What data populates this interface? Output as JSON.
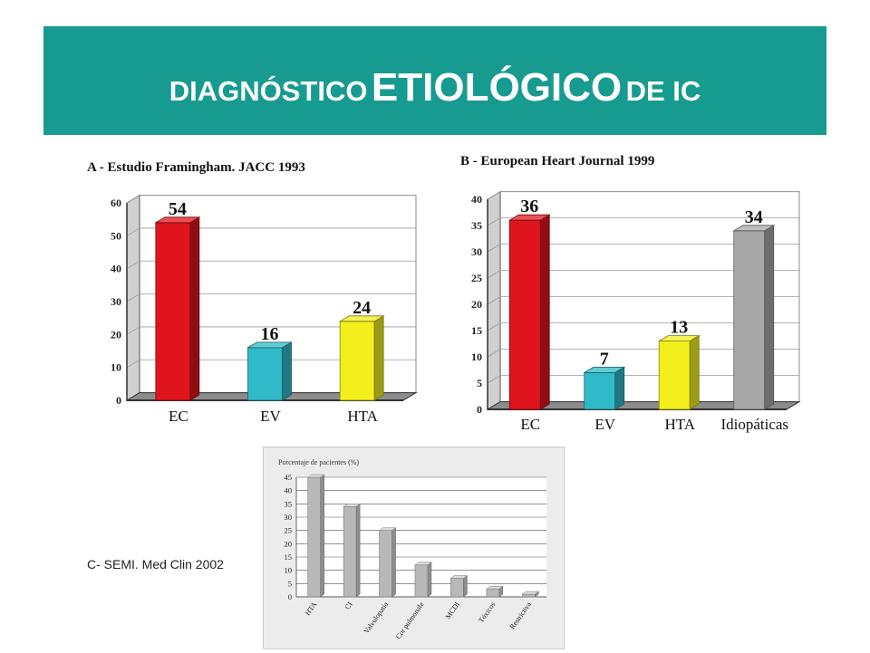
{
  "slide": {
    "title_part1": "DIAGNÓSTICO",
    "title_part2": "ETIOLÓGICO",
    "title_part3": "DE IC",
    "caption_c": "C- SEMI. Med Clin 2002",
    "accent_color": "#179b91"
  },
  "chart_data": [
    {
      "type": "bar",
      "title": "A - Estudio Framingham. JACC 1993",
      "categories": [
        "EC",
        "EV",
        "HTA"
      ],
      "values": [
        54,
        16,
        24
      ],
      "value_labels": [
        "54",
        "16",
        "24"
      ],
      "colors": [
        "#e0141d",
        "#2fb9c9",
        "#f2ef1c"
      ],
      "ylim": [
        0,
        60
      ],
      "yticks": [
        "0",
        "10",
        "20",
        "30",
        "40",
        "50",
        "60"
      ],
      "grid": true
    },
    {
      "type": "bar",
      "title": "B - European Heart Journal 1999",
      "categories": [
        "EC",
        "EV",
        "HTA",
        "Idiopáticas"
      ],
      "values": [
        36,
        7,
        13,
        34
      ],
      "value_labels": [
        "36",
        "7",
        "13",
        "34"
      ],
      "colors": [
        "#e0141d",
        "#2fb9c9",
        "#f2ef1c",
        "#a8a8a8"
      ],
      "ylim": [
        0,
        40
      ],
      "yticks": [
        "0",
        "5",
        "10",
        "15",
        "20",
        "25",
        "30",
        "35",
        "40"
      ],
      "grid": true
    },
    {
      "type": "bar",
      "ylabel": "Porcentaje de pacientes (%)",
      "categories": [
        "HTA",
        "CI",
        "Valvulopatía",
        "Cor pulmonale",
        "MCDI",
        "Tóxicos",
        "Restrictiva"
      ],
      "values": [
        45,
        34,
        25,
        12,
        7,
        3,
        1
      ],
      "colors": [
        "#b5b5b5"
      ],
      "ylim": [
        0,
        45
      ],
      "yticks": [
        "0",
        "5",
        "10",
        "15",
        "20",
        "25",
        "30",
        "35",
        "40",
        "45"
      ],
      "grid": true
    }
  ]
}
